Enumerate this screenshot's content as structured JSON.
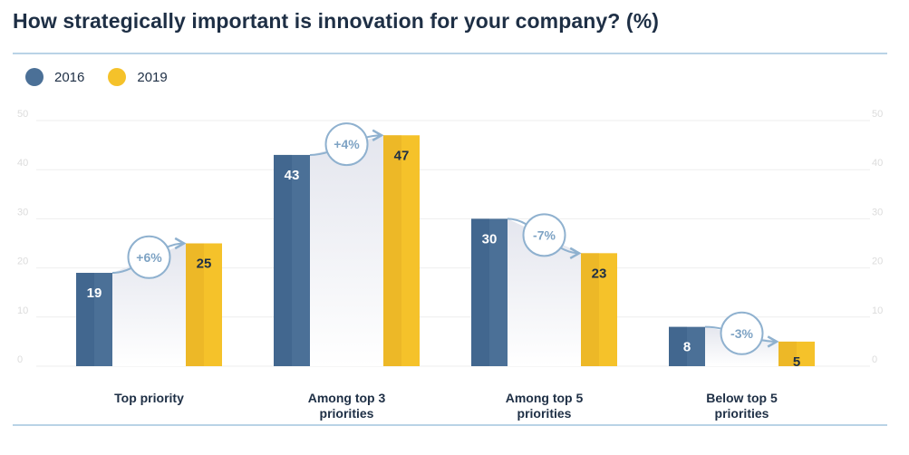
{
  "title": "How strategically important is innovation for your company? (%)",
  "legend": [
    {
      "label": "2016",
      "color": "#4b7097"
    },
    {
      "label": "2019",
      "color": "#f5c22a"
    }
  ],
  "chart_data": {
    "type": "bar",
    "title": "How strategically important is innovation for your company? (%)",
    "categories": [
      "Top priority",
      "Among top 3 priorities",
      "Among top 5 priorities",
      "Below top 5 priorities"
    ],
    "category_lines": [
      [
        "Top priority"
      ],
      [
        "Among top 3",
        "priorities"
      ],
      [
        "Among top 5",
        "priorities"
      ],
      [
        "Below top 5",
        "priorities"
      ]
    ],
    "series": [
      {
        "name": "2016",
        "values": [
          19,
          43,
          30,
          8
        ],
        "color": "#4b7097",
        "color_dark": "#3d6189"
      },
      {
        "name": "2019",
        "values": [
          25,
          47,
          23,
          5
        ],
        "color": "#f5c22a",
        "color_dark": "#e6b024"
      }
    ],
    "changes": [
      "+6%",
      "+4%",
      "-7%",
      "-3%"
    ],
    "yticks": [
      0,
      10,
      20,
      30,
      40,
      50
    ],
    "ylim": [
      0,
      50
    ],
    "xlabel": "",
    "ylabel": "",
    "legend_position": "top-left"
  }
}
